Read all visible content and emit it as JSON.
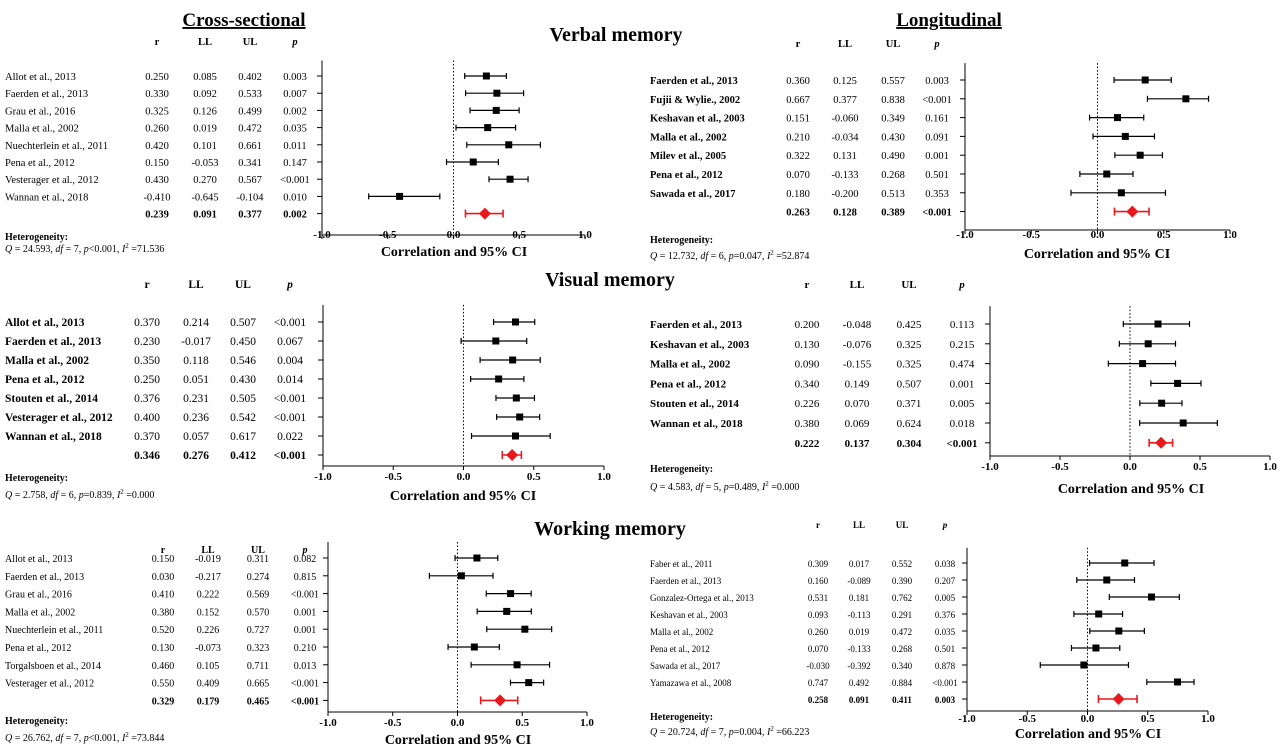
{
  "headings": {
    "cross_sectional": "Cross-sectional",
    "longitudinal": "Longitudinal"
  },
  "section_titles": [
    "Verbal memory",
    "Visual memory",
    "Working memory"
  ],
  "column_headers": [
    "r",
    "LL",
    "UL",
    "p"
  ],
  "heterogeneity_label": "Heterogeneity:",
  "colors": {
    "study": "#000000",
    "pooled": "#e8191c",
    "reference_line": "#000000"
  },
  "chart_data": [
    {
      "type": "scatter",
      "subtype": "forest_plot",
      "section": "Verbal memory",
      "panel": "Cross-sectional",
      "xlabel": "Correlation and 95% CI",
      "xlim": [
        -1.0,
        1.0
      ],
      "xticks": [
        "-1.0",
        "-0.5",
        "0.0",
        "0.5",
        "1.0"
      ],
      "studies": [
        {
          "name": "Allot et al., 2013",
          "r": "0.250",
          "ll": "0.085",
          "ul": "0.402",
          "p": "0.003"
        },
        {
          "name": "Faerden et al., 2013",
          "r": "0.330",
          "ll": "0.092",
          "ul": "0.533",
          "p": "0.007"
        },
        {
          "name": "Grau et al., 2016",
          "r": "0.325",
          "ll": "0.126",
          "ul": "0.499",
          "p": "0.002"
        },
        {
          "name": "Malla et al., 2002",
          "r": "0.260",
          "ll": "0.019",
          "ul": "0.472",
          "p": "0.035"
        },
        {
          "name": "Nuechterlein et al., 2011",
          "r": "0.420",
          "ll": "0.101",
          "ul": "0.661",
          "p": "0.011"
        },
        {
          "name": "Pena et al., 2012",
          "r": "0.150",
          "ll": "-0.053",
          "ul": "0.341",
          "p": "0.147"
        },
        {
          "name": "Vesterager et al., 2012",
          "r": "0.430",
          "ll": "0.270",
          "ul": "0.567",
          "p": "<0.001"
        },
        {
          "name": "Wannan et al., 2018",
          "r": "-0.410",
          "ll": "-0.645",
          "ul": "-0.104",
          "p": "0.010"
        }
      ],
      "pooled": {
        "r": "0.239",
        "ll": "0.091",
        "ul": "0.377",
        "p": "0.002"
      },
      "heterogeneity": {
        "Q": "24.593",
        "df": "7",
        "p": "<0.001",
        "I2": "71.536"
      }
    },
    {
      "type": "scatter",
      "subtype": "forest_plot",
      "section": "Verbal memory",
      "panel": "Longitudinal",
      "xlabel": "Correlation and 95% CI",
      "xlim": [
        -1.0,
        1.0
      ],
      "xticks": [
        "-1.0",
        "-0.5",
        "0.0",
        "0.5",
        "1.0"
      ],
      "studies": [
        {
          "name": "Faerden et al., 2013",
          "r": "0.360",
          "ll": "0.125",
          "ul": "0.557",
          "p": "0.003"
        },
        {
          "name": "Fujii & Wylie., 2002",
          "r": "0.667",
          "ll": "0.377",
          "ul": "0.838",
          "p": "<0.001"
        },
        {
          "name": "Keshavan et al., 2003",
          "r": "0.151",
          "ll": "-0.060",
          "ul": "0.349",
          "p": "0.161"
        },
        {
          "name": "Malla et al., 2002",
          "r": "0.210",
          "ll": "-0.034",
          "ul": "0.430",
          "p": "0.091"
        },
        {
          "name": "Milev et al., 2005",
          "r": "0.322",
          "ll": "0.131",
          "ul": "0.490",
          "p": "0.001"
        },
        {
          "name": "Pena et al., 2012",
          "r": "0.070",
          "ll": "-0.133",
          "ul": "0.268",
          "p": "0.501"
        },
        {
          "name": "Sawada et al., 2017",
          "r": "0.180",
          "ll": "-0.200",
          "ul": "0.513",
          "p": "0.353"
        }
      ],
      "pooled": {
        "r": "0.263",
        "ll": "0.128",
        "ul": "0.389",
        "p": "<0.001"
      },
      "heterogeneity": {
        "Q": "12.732",
        "df": "6",
        "p": "0.047",
        "I2": "52.874"
      }
    },
    {
      "type": "scatter",
      "subtype": "forest_plot",
      "section": "Visual memory",
      "panel": "Cross-sectional",
      "xlabel": "Correlation and 95% CI",
      "xlim": [
        -1.0,
        1.0
      ],
      "xticks": [
        "-1.0",
        "-0.5",
        "0.0",
        "0.5",
        "1.0"
      ],
      "studies": [
        {
          "name": "Allot et al., 2013",
          "r": "0.370",
          "ll": "0.214",
          "ul": "0.507",
          "p": "<0.001"
        },
        {
          "name": "Faerden et al., 2013",
          "r": "0.230",
          "ll": "-0.017",
          "ul": "0.450",
          "p": "0.067"
        },
        {
          "name": "Malla et al., 2002",
          "r": "0.350",
          "ll": "0.118",
          "ul": "0.546",
          "p": "0.004"
        },
        {
          "name": "Pena et al., 2012",
          "r": "0.250",
          "ll": "0.051",
          "ul": "0.430",
          "p": "0.014"
        },
        {
          "name": "Stouten et al., 2014",
          "r": "0.376",
          "ll": "0.231",
          "ul": "0.505",
          "p": "<0.001"
        },
        {
          "name": "Vesterager et al., 2012",
          "r": "0.400",
          "ll": "0.236",
          "ul": "0.542",
          "p": "<0.001"
        },
        {
          "name": "Wannan et al., 2018",
          "r": "0.370",
          "ll": "0.057",
          "ul": "0.617",
          "p": "0.022"
        }
      ],
      "pooled": {
        "r": "0.346",
        "ll": "0.276",
        "ul": "0.412",
        "p": "<0.001"
      },
      "heterogeneity": {
        "Q": "2.758",
        "df": "6",
        "p": "0.839",
        "I2": "0.000"
      }
    },
    {
      "type": "scatter",
      "subtype": "forest_plot",
      "section": "Visual memory",
      "panel": "Longitudinal",
      "xlabel": "Correlation and 95% CI",
      "xlim": [
        -1.0,
        1.0
      ],
      "xticks": [
        "-1.0",
        "-0.5",
        "0.0",
        "0.5",
        "1.0"
      ],
      "studies": [
        {
          "name": "Faerden et al., 2013",
          "r": "0.200",
          "ll": "-0.048",
          "ul": "0.425",
          "p": "0.113"
        },
        {
          "name": "Keshavan et al., 2003",
          "r": "0.130",
          "ll": "-0.076",
          "ul": "0.325",
          "p": "0.215"
        },
        {
          "name": "Malla et al., 2002",
          "r": "0.090",
          "ll": "-0.155",
          "ul": "0.325",
          "p": "0.474"
        },
        {
          "name": "Pena et al., 2012",
          "r": "0.340",
          "ll": "0.149",
          "ul": "0.507",
          "p": "0.001"
        },
        {
          "name": "Stouten et al., 2014",
          "r": "0.226",
          "ll": "0.070",
          "ul": "0.371",
          "p": "0.005"
        },
        {
          "name": "Wannan et al., 2018",
          "r": "0.380",
          "ll": "0.069",
          "ul": "0.624",
          "p": "0.018"
        }
      ],
      "pooled": {
        "r": "0.222",
        "ll": "0.137",
        "ul": "0.304",
        "p": "<0.001"
      },
      "heterogeneity": {
        "Q": "4.583",
        "df": "5",
        "p": "0.489",
        "I2": "0.000"
      }
    },
    {
      "type": "scatter",
      "subtype": "forest_plot",
      "section": "Working memory",
      "panel": "Cross-sectional",
      "xlabel": "Correlation and 95% CI",
      "xlim": [
        -1.0,
        1.0
      ],
      "xticks": [
        "-1.0",
        "-0.5",
        "0.0",
        "0.5",
        "1.0"
      ],
      "studies": [
        {
          "name": "Allot et al., 2013",
          "r": "0.150",
          "ll": "-0.019",
          "ul": "0.311",
          "p": "0.082"
        },
        {
          "name": "Faerden et al., 2013",
          "r": "0.030",
          "ll": "-0.217",
          "ul": "0.274",
          "p": "0.815"
        },
        {
          "name": "Grau et al., 2016",
          "r": "0.410",
          "ll": "0.222",
          "ul": "0.569",
          "p": "<0.001"
        },
        {
          "name": "Malla et al., 2002",
          "r": "0.380",
          "ll": "0.152",
          "ul": "0.570",
          "p": "0.001"
        },
        {
          "name": "Nuechterlein et al., 2011",
          "r": "0.520",
          "ll": "0.226",
          "ul": "0.727",
          "p": "0.001"
        },
        {
          "name": "Pena et al., 2012",
          "r": "0.130",
          "ll": "-0.073",
          "ul": "0.323",
          "p": "0.210"
        },
        {
          "name": "Torgalsboen et al., 2014",
          "r": "0.460",
          "ll": "0.105",
          "ul": "0.711",
          "p": "0.013"
        },
        {
          "name": "Vesterager et al., 2012",
          "r": "0.550",
          "ll": "0.409",
          "ul": "0.665",
          "p": "<0.001"
        }
      ],
      "pooled": {
        "r": "0.329",
        "ll": "0.179",
        "ul": "0.465",
        "p": "<0.001"
      },
      "heterogeneity": {
        "Q": "26.762",
        "df": "7",
        "p": "<0.001",
        "I2": "73.844"
      }
    },
    {
      "type": "scatter",
      "subtype": "forest_plot",
      "section": "Working memory",
      "panel": "Longitudinal",
      "xlabel": "Correlation and 95% CI",
      "xlim": [
        -1.0,
        1.0
      ],
      "xticks": [
        "-1.0",
        "-0.5",
        "0.0",
        "0.5",
        "1.0"
      ],
      "studies": [
        {
          "name": "Faber et al., 2011",
          "r": "0.309",
          "ll": "0.017",
          "ul": "0.552",
          "p": "0.038"
        },
        {
          "name": "Faerden et al., 2013",
          "r": "0.160",
          "ll": "-0.089",
          "ul": "0.390",
          "p": "0.207"
        },
        {
          "name": "Gonzalez-Ortega et al., 2013",
          "r": "0.531",
          "ll": "0.181",
          "ul": "0.762",
          "p": "0.005"
        },
        {
          "name": "Keshavan et al., 2003",
          "r": "0.093",
          "ll": "-0.113",
          "ul": "0.291",
          "p": "0.376"
        },
        {
          "name": "Malla et al., 2002",
          "r": "0.260",
          "ll": "0.019",
          "ul": "0.472",
          "p": "0.035"
        },
        {
          "name": "Pena et al., 2012",
          "r": "0.070",
          "ll": "-0.133",
          "ul": "0.268",
          "p": "0.501"
        },
        {
          "name": "Sawada et al., 2017",
          "r": "-0.030",
          "ll": "-0.392",
          "ul": "0.340",
          "p": "0.878"
        },
        {
          "name": "Yamazawa et al., 2008",
          "r": "0.747",
          "ll": "0.492",
          "ul": "0.884",
          "p": "<0.001"
        }
      ],
      "pooled": {
        "r": "0.258",
        "ll": "0.091",
        "ul": "0.411",
        "p": "0.003"
      },
      "heterogeneity": {
        "Q": "20.724",
        "df": "7",
        "p": "0.004",
        "I2": "66.223"
      }
    }
  ]
}
